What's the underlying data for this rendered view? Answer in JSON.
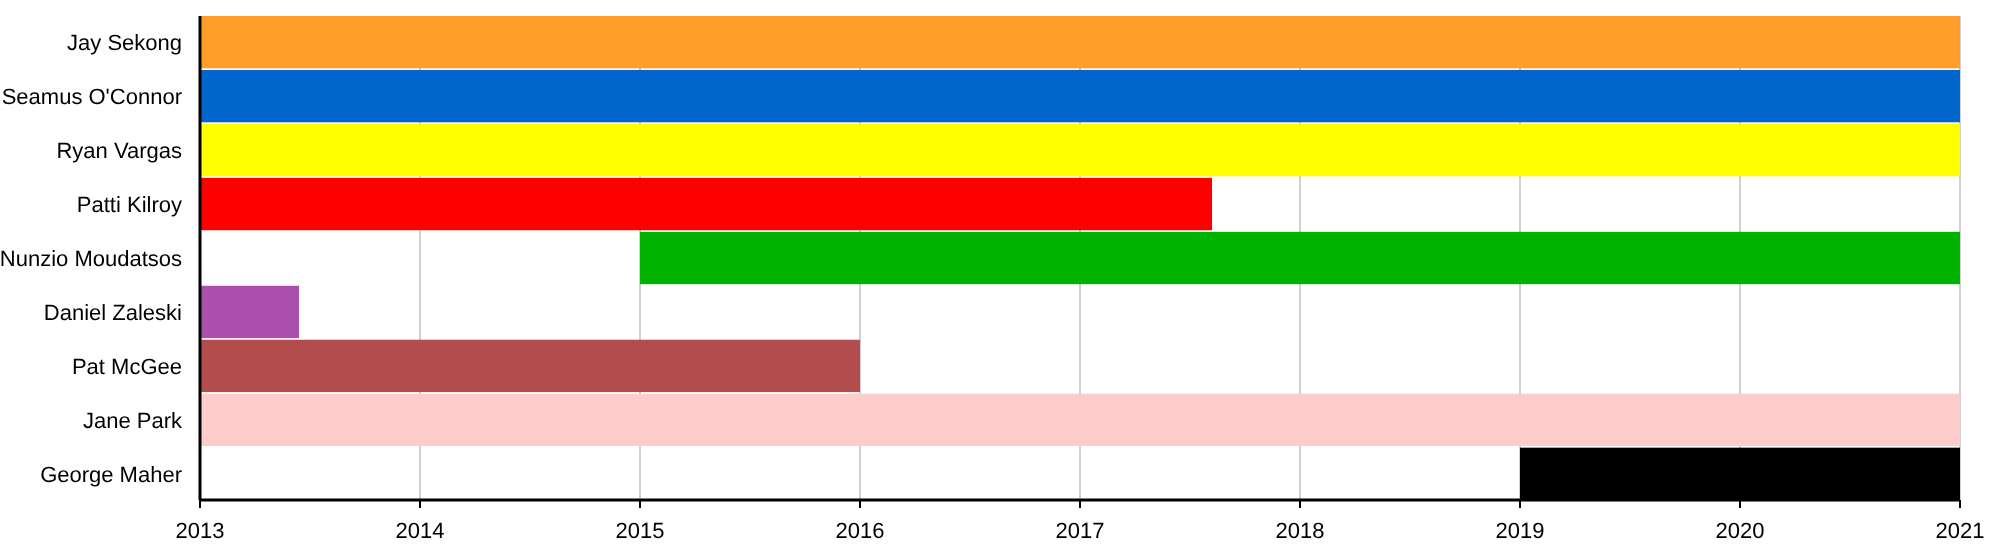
{
  "chart_data": {
    "type": "bar",
    "orientation": "horizontal",
    "categories": [
      "Jay Sekong",
      "Seamus O'Connor",
      "Ryan Vargas",
      "Patti Kilroy",
      "Nunzio Moudatsos",
      "Daniel Zaleski",
      "Pat McGee",
      "Jane Park",
      "George Maher"
    ],
    "base": [
      2013,
      2013,
      2013,
      2013,
      2015,
      2013,
      2013,
      2013,
      2019
    ],
    "values": [
      8,
      8,
      8,
      4.6,
      6,
      0.45,
      3,
      8,
      2
    ],
    "colors": [
      "#ff9f2a",
      "#0066cc",
      "#ffff00",
      "#ff0000",
      "#00b300",
      "#ab4fac",
      "#b34d4d",
      "#ffcccc",
      "#000000"
    ],
    "xlim": [
      2013,
      2021
    ],
    "xticks": [
      2013,
      2014,
      2015,
      2016,
      2017,
      2018,
      2019,
      2020,
      2021
    ],
    "grid": "x"
  }
}
